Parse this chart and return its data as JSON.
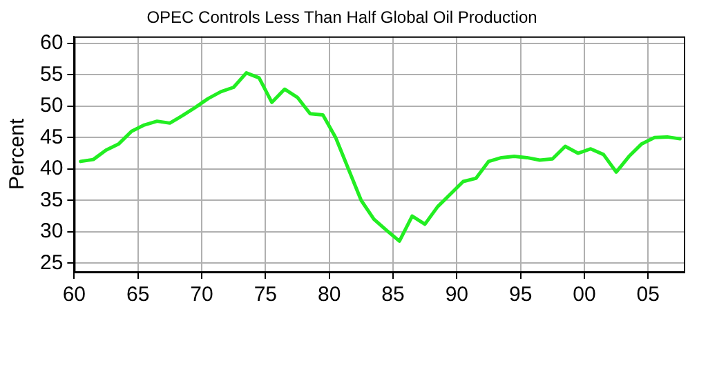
{
  "chart_data": {
    "type": "line",
    "title": "OPEC Controls Less Than Half Global Oil Production",
    "ylabel": "Percent",
    "x": [
      1960.5,
      1961.5,
      1962.5,
      1963.5,
      1964.5,
      1965.5,
      1966.5,
      1967.5,
      1968.5,
      1969.5,
      1970.5,
      1971.5,
      1972.5,
      1973.5,
      1974.5,
      1975.5,
      1976.5,
      1977.5,
      1978.5,
      1979.5,
      1980.5,
      1981.5,
      1982.5,
      1983.5,
      1984.5,
      1985.5,
      1986.5,
      1987.5,
      1988.5,
      1989.5,
      1990.5,
      1991.5,
      1992.5,
      1993.5,
      1994.5,
      1995.5,
      1996.5,
      1997.5,
      1998.5,
      1999.5,
      2000.5,
      2001.5,
      2002.5,
      2003.5,
      2004.5,
      2005.5,
      2006.5,
      2007.5
    ],
    "series": [
      {
        "color": "#22ee22",
        "values": [
          41.2,
          41.5,
          43,
          44,
          46,
          47,
          47.6,
          47.3,
          48.5,
          49.8,
          51.2,
          52.3,
          53,
          55.3,
          54.5,
          50.6,
          52.7,
          51.4,
          48.8,
          48.6,
          45,
          40,
          35,
          32,
          30.2,
          28.5,
          32.5,
          31.2,
          34,
          36,
          38,
          38.5,
          41.2,
          41.8,
          42,
          41.8,
          41.4,
          41.6,
          43.6,
          42.5,
          43.2,
          42.3,
          39.5,
          42,
          44,
          45,
          45.1,
          44.8
        ]
      }
    ],
    "xlim": [
      1960,
      2007.8
    ],
    "xticks": [
      {
        "value": 1960,
        "label": "60"
      },
      {
        "value": 1965,
        "label": "65"
      },
      {
        "value": 1970,
        "label": "70"
      },
      {
        "value": 1975,
        "label": "75"
      },
      {
        "value": 1980,
        "label": "80"
      },
      {
        "value": 1985,
        "label": "85"
      },
      {
        "value": 1990,
        "label": "90"
      },
      {
        "value": 1995,
        "label": "95"
      },
      {
        "value": 2000,
        "label": "00"
      },
      {
        "value": 2005,
        "label": "05"
      }
    ],
    "ylim": [
      23.6,
      61.1
    ],
    "yticks": [
      25,
      30,
      35,
      40,
      45,
      50,
      55,
      60
    ],
    "grid": true,
    "legend": false,
    "marker": "none",
    "line_style": "solid"
  }
}
